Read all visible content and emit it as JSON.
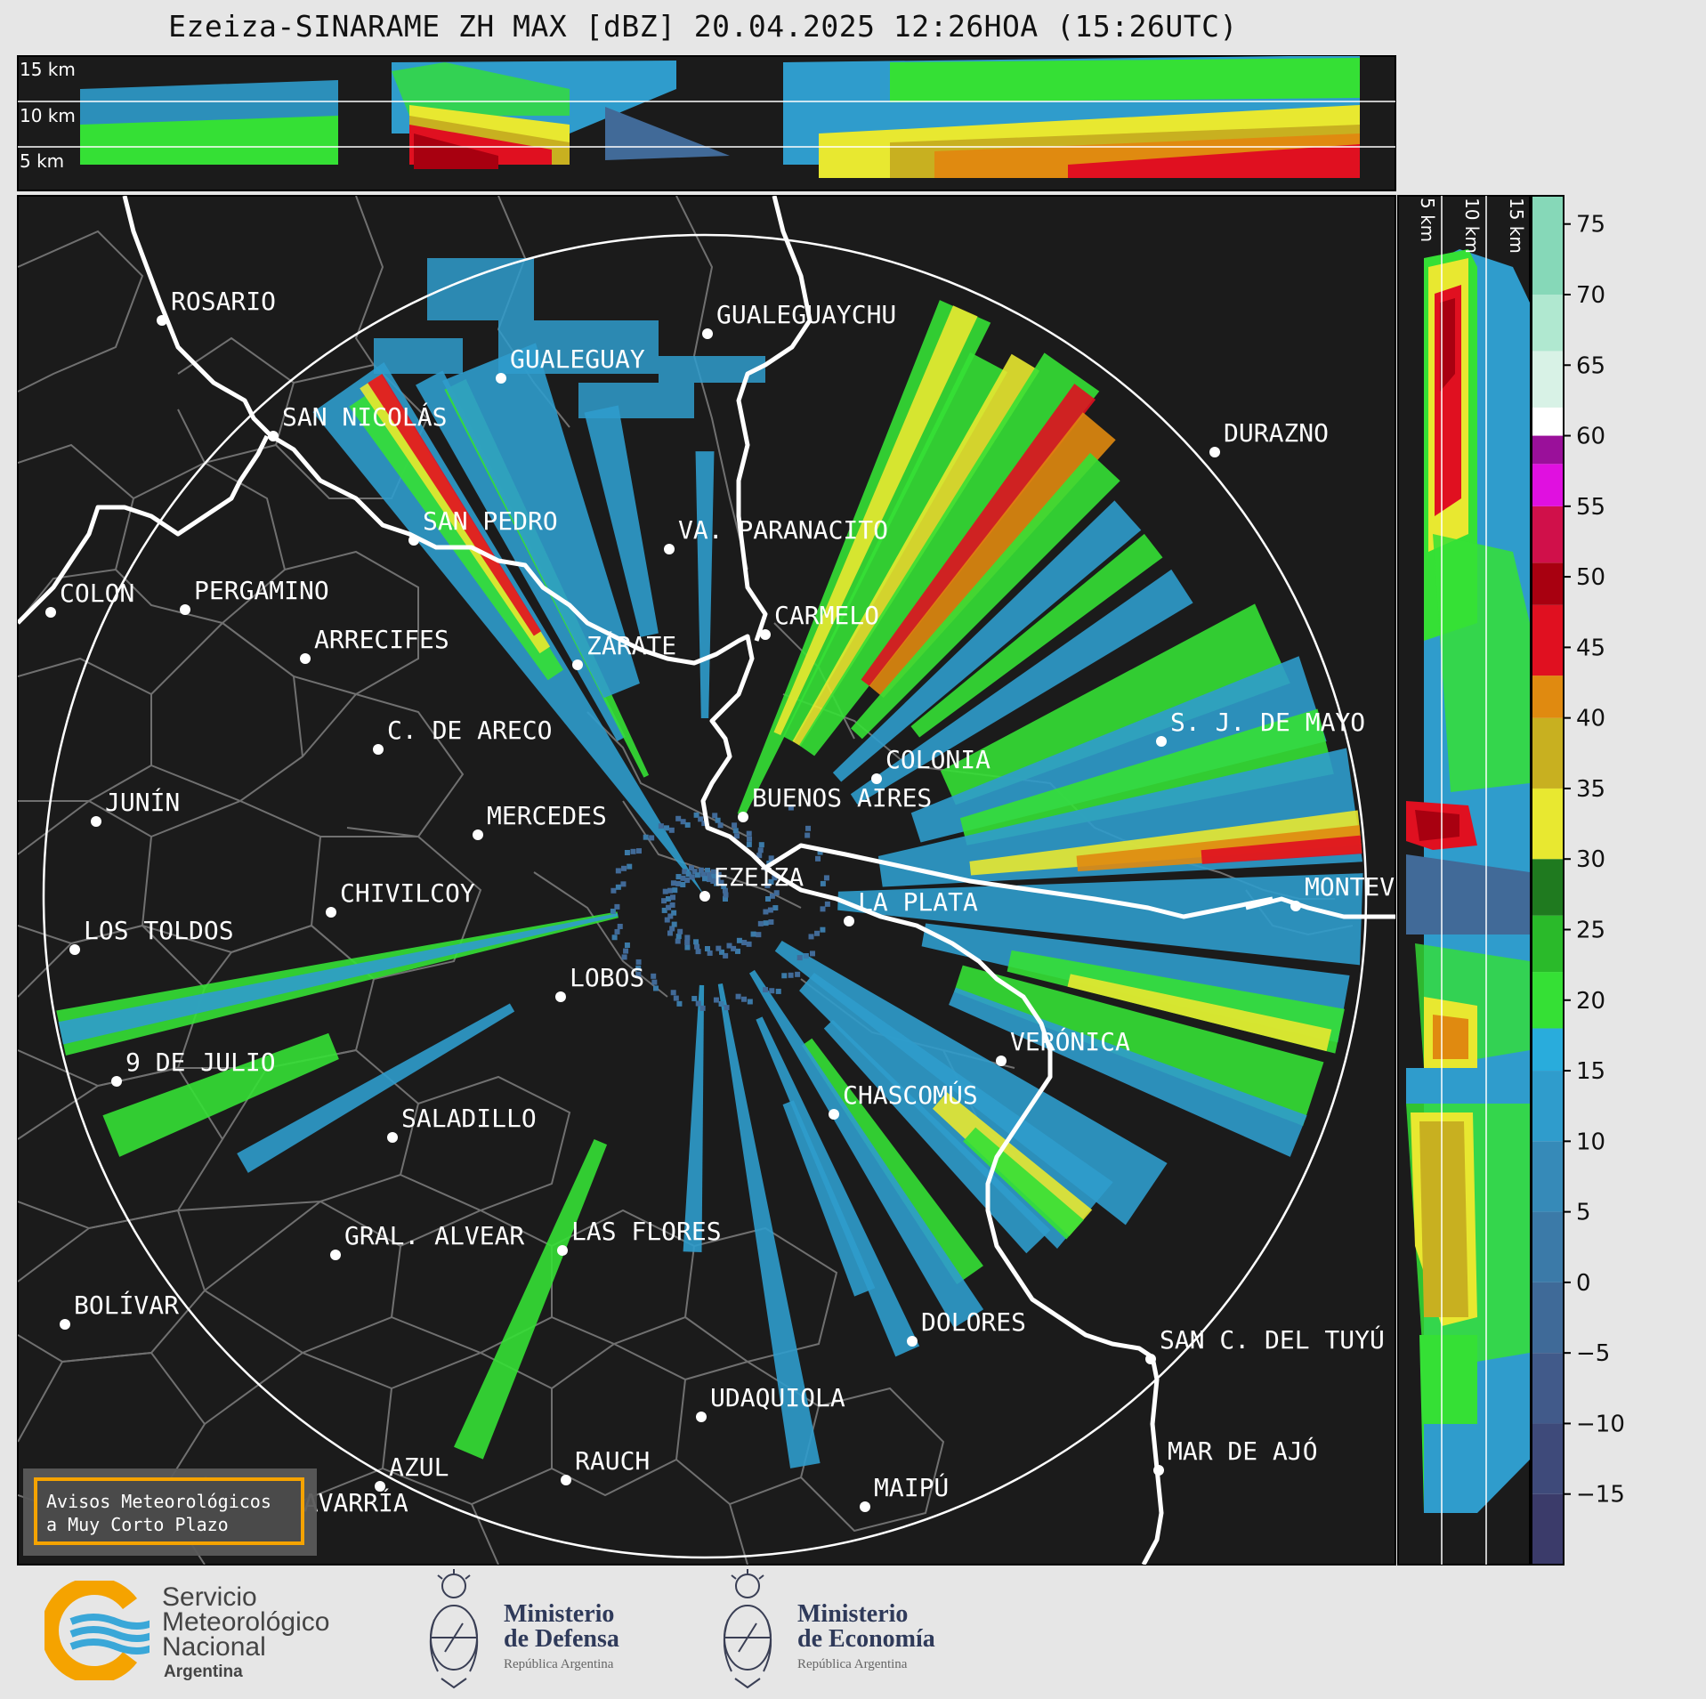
{
  "title": "Ezeiza-SINARAME ZH MAX [dBZ] 20.04.2025 12:26HOA (15:26UTC)",
  "top_panel": {
    "heights": [
      "15 km",
      "10 km",
      "5 km"
    ]
  },
  "right_panel": {
    "heights": [
      "5 km",
      "10 km",
      "15 km"
    ]
  },
  "colorbar": {
    "unit": "dBZ",
    "ticks": [
      "75",
      "70",
      "65",
      "60",
      "55",
      "50",
      "45",
      "40",
      "35",
      "30",
      "25",
      "20",
      "15",
      "10",
      "5",
      "0",
      "−5",
      "−10",
      "−15"
    ],
    "bands": [
      {
        "from": -20,
        "to": -15,
        "color": "#3b3b6a"
      },
      {
        "from": -15,
        "to": -10,
        "color": "#3e4a7a"
      },
      {
        "from": -10,
        "to": -5,
        "color": "#415a8a"
      },
      {
        "from": -5,
        "to": 0,
        "color": "#3f6a98"
      },
      {
        "from": 0,
        "to": 5,
        "color": "#3b7aa8"
      },
      {
        "from": 5,
        "to": 10,
        "color": "#368ab8"
      },
      {
        "from": 10,
        "to": 15,
        "color": "#2f9ccc"
      },
      {
        "from": 15,
        "to": 18,
        "color": "#29acdc"
      },
      {
        "from": 18,
        "to": 22,
        "color": "#35e035"
      },
      {
        "from": 22,
        "to": 26,
        "color": "#2aba2a"
      },
      {
        "from": 26,
        "to": 30,
        "color": "#1f7a1f"
      },
      {
        "from": 30,
        "to": 35,
        "color": "#e8e830"
      },
      {
        "from": 35,
        "to": 40,
        "color": "#c8b020"
      },
      {
        "from": 40,
        "to": 43,
        "color": "#e08a10"
      },
      {
        "from": 43,
        "to": 48,
        "color": "#e01020"
      },
      {
        "from": 48,
        "to": 51,
        "color": "#a80010"
      },
      {
        "from": 51,
        "to": 55,
        "color": "#d0104a"
      },
      {
        "from": 55,
        "to": 58,
        "color": "#e010e0"
      },
      {
        "from": 58,
        "to": 60,
        "color": "#9a109a"
      },
      {
        "from": 60,
        "to": 62,
        "color": "#ffffff"
      },
      {
        "from": 62,
        "to": 66,
        "color": "#d8f2e6"
      },
      {
        "from": 66,
        "to": 70,
        "color": "#b0e8d0"
      },
      {
        "from": 70,
        "to": 77,
        "color": "#86d8b8"
      }
    ]
  },
  "colors": {
    "map_bg": "#1b1b1b",
    "boundary": "#777777",
    "coast": "#ffffff",
    "avisos_border": "#f5a300"
  },
  "radar": {
    "name": "EZEIZA"
  },
  "cities": [
    {
      "name": "ROSARIO",
      "bx": 182,
      "by": 360
    },
    {
      "name": "GUALEGUAYCHU",
      "bx": 795,
      "by": 375
    },
    {
      "name": "GUALEGUAY",
      "bx": 563,
      "by": 425
    },
    {
      "name": "SAN NICOLÁS",
      "bx": 307,
      "by": 490
    },
    {
      "name": "DURAZNO",
      "bx": 1365,
      "by": 508
    },
    {
      "name": "SAN PEDRO",
      "bx": 465,
      "by": 607
    },
    {
      "name": "VA. PARANACITO",
      "bx": 752,
      "by": 617
    },
    {
      "name": "COLON",
      "bx": 57,
      "by": 688
    },
    {
      "name": "PERGAMINO",
      "bx": 208,
      "by": 685
    },
    {
      "name": "CARMELO",
      "bx": 860,
      "by": 713
    },
    {
      "name": "ARRECIFES",
      "bx": 343,
      "by": 740
    },
    {
      "name": "ZÁRATE",
      "bx": 649,
      "by": 747
    },
    {
      "name": "S. J. DE MAYO",
      "bx": 1305,
      "by": 833
    },
    {
      "name": "C. DE ARECO",
      "bx": 425,
      "by": 842
    },
    {
      "name": "COLONIA",
      "bx": 985,
      "by": 875
    },
    {
      "name": "JUNÍN",
      "bx": 108,
      "by": 923
    },
    {
      "name": "BUENOS AIRES",
      "bx": 835,
      "by": 918
    },
    {
      "name": "MERCEDES",
      "bx": 537,
      "by": 938
    },
    {
      "name": "EZEIZA",
      "bx": 792,
      "by": 1007
    },
    {
      "name": "MONTEVIDEO",
      "bx": 1456,
      "by": 1018
    },
    {
      "name": "CHIVILCOY",
      "bx": 372,
      "by": 1025
    },
    {
      "name": "LA PLATA",
      "bx": 954,
      "by": 1035
    },
    {
      "name": "LOS TOLDOS",
      "bx": 84,
      "by": 1067
    },
    {
      "name": "LOBOS",
      "bx": 630,
      "by": 1120
    },
    {
      "name": "VERÓNICA",
      "bx": 1125,
      "by": 1192
    },
    {
      "name": "9 DE JULIO",
      "bx": 131,
      "by": 1215
    },
    {
      "name": "CHASCOMÚS",
      "bx": 937,
      "by": 1252
    },
    {
      "name": "SALADILLO",
      "bx": 441,
      "by": 1278
    },
    {
      "name": "GRAL. ALVEAR",
      "bx": 377,
      "by": 1410
    },
    {
      "name": "LAS FLORES",
      "bx": 632,
      "by": 1405
    },
    {
      "name": "BOLÍVAR",
      "bx": 73,
      "by": 1488
    },
    {
      "name": "DOLORES",
      "bx": 1025,
      "by": 1507
    },
    {
      "name": "SAN C. DEL TUYÚ",
      "bx": 1293,
      "by": 1527
    },
    {
      "name": "UDAQUIOLA",
      "bx": 788,
      "by": 1592
    },
    {
      "name": "MAR DE AJÓ",
      "bx": 1302,
      "by": 1652
    },
    {
      "name": "AZUL",
      "bx": 427,
      "by": 1670
    },
    {
      "name": "RAUCH",
      "bx": 636,
      "by": 1663
    },
    {
      "name": "OLAVARRÍA",
      "bx": 297,
      "by": 1710
    },
    {
      "name": "MAIPÚ",
      "bx": 972,
      "by": 1693
    }
  ],
  "avisos": {
    "line1": "Avisos Meteorológicos",
    "line2": "a Muy Corto Plazo"
  },
  "logos": {
    "smn": {
      "line1": "Servicio",
      "line2": "Meteorológico",
      "line3": "Nacional",
      "line4": "Argentina"
    },
    "defensa": {
      "line1": "Ministerio",
      "line2": "de Defensa",
      "line3": "República Argentina"
    },
    "economia": {
      "line1": "Ministerio",
      "line2": "de Economía",
      "line3": "República Argentina"
    }
  }
}
